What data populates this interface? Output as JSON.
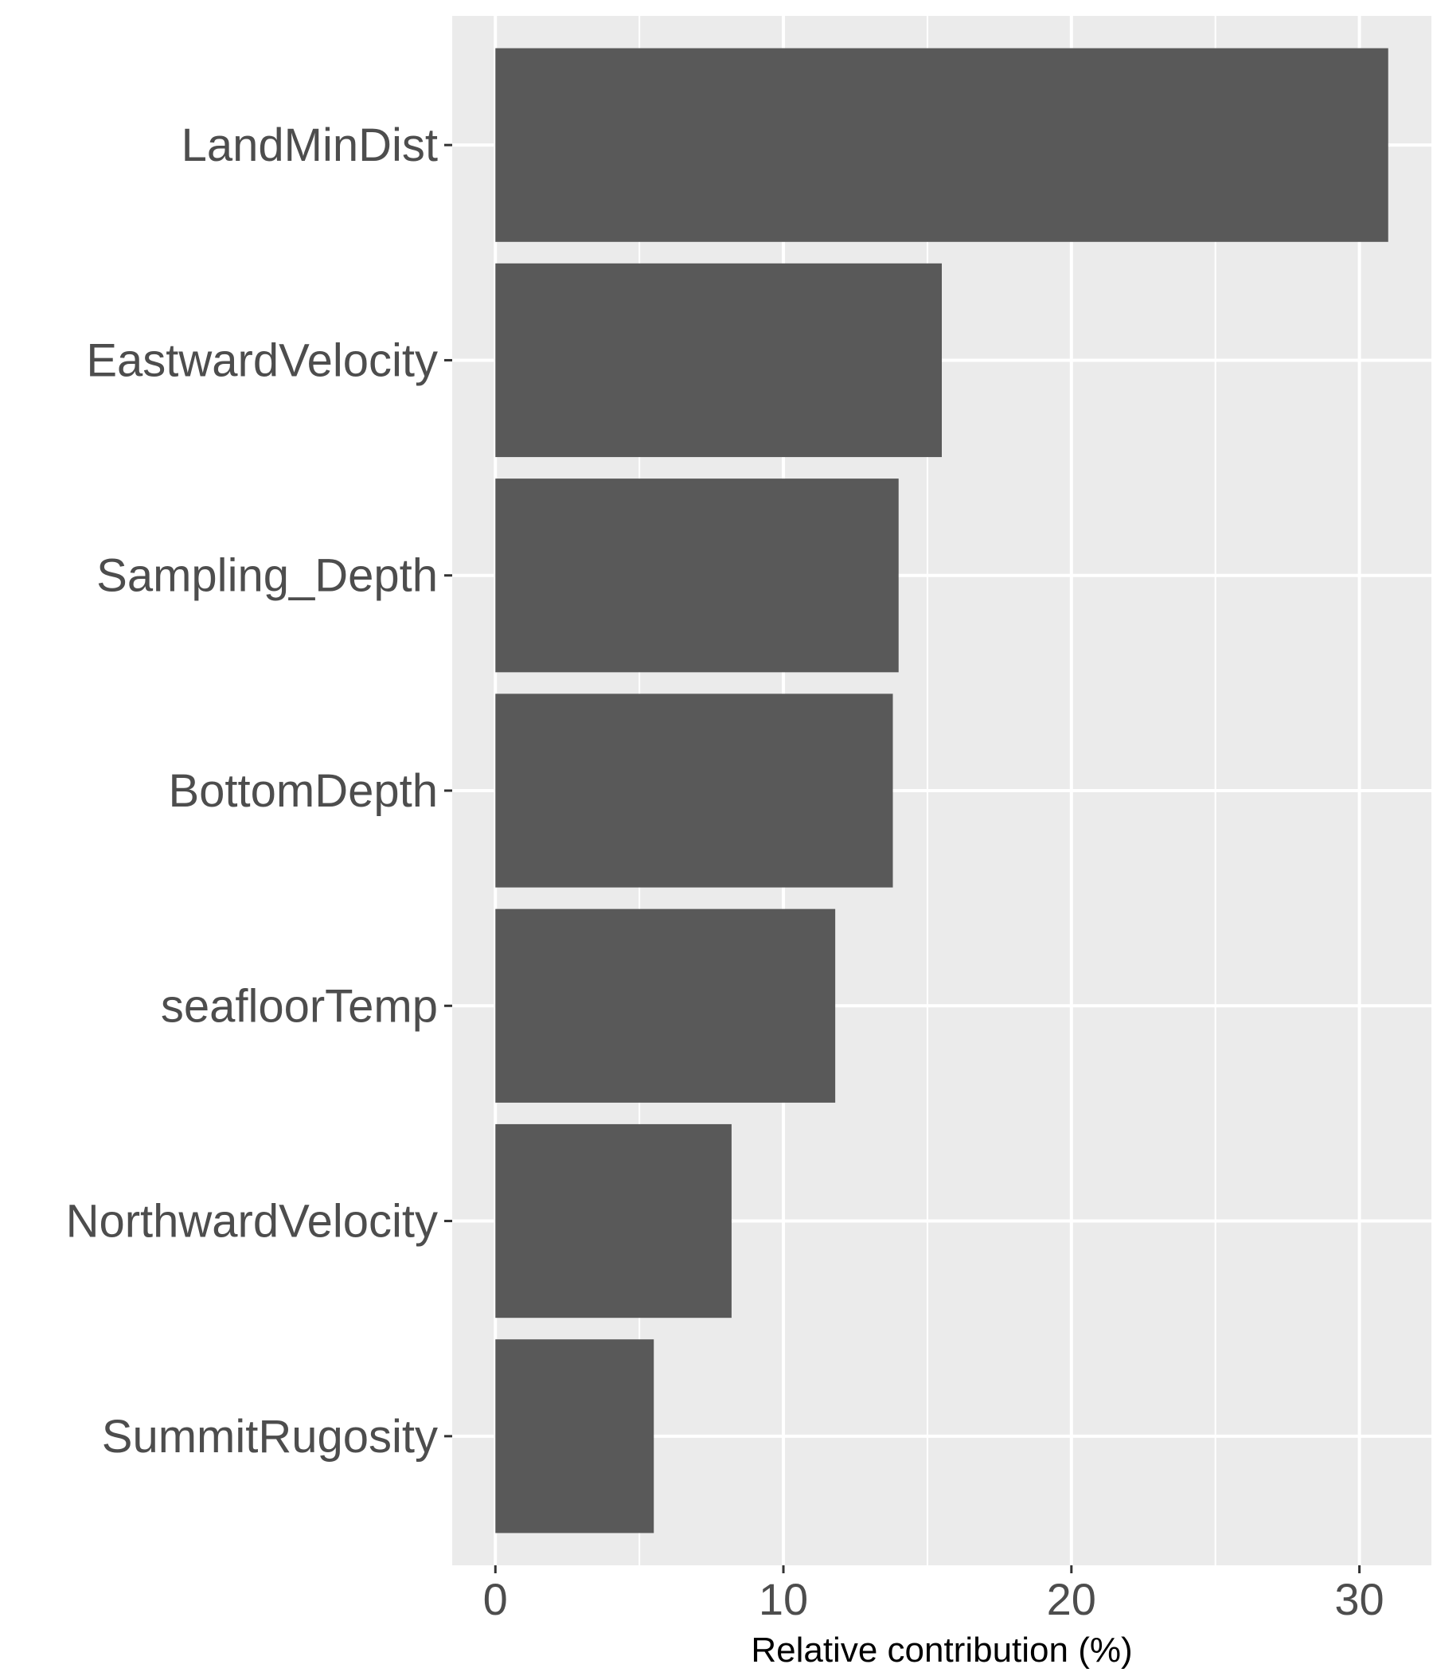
{
  "chart_data": {
    "type": "bar",
    "orientation": "horizontal",
    "title": "",
    "xlabel": "Relative contribution (%)",
    "ylabel": "",
    "categories": [
      "LandMinDist",
      "EastwardVelocity",
      "Sampling_Depth",
      "BottomDepth",
      "seafloorTemp",
      "NorthwardVelocity",
      "SummitRugosity"
    ],
    "values": [
      31.0,
      15.5,
      14.0,
      13.8,
      11.8,
      8.2,
      5.5
    ],
    "xlim": [
      -1.5,
      32.5
    ],
    "xticks": [
      0,
      10,
      20,
      30
    ],
    "xtick_labels": [
      "0",
      "10",
      "20",
      "30"
    ],
    "grid": true,
    "legend": "none",
    "colors": {
      "bar": "#595959",
      "panel": "#ebebeb",
      "grid": "#ffffff",
      "text": "#4d4d4d"
    }
  }
}
